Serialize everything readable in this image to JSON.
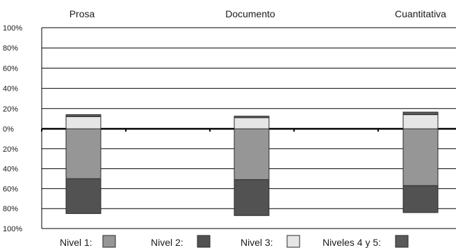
{
  "chart_data": {
    "type": "bar",
    "categories": [
      "Prosa",
      "Documento",
      "Cuantitativa"
    ],
    "y_tick_labels": [
      "100%",
      "80%",
      "60%",
      "40%",
      "20%",
      "0%",
      "20%",
      "40%",
      "60%",
      "80%",
      "100%"
    ],
    "ylim": [
      -100,
      100
    ],
    "grid": true,
    "legend_position": "bottom",
    "series": [
      {
        "name": "Nivel 1:",
        "color": "#969696",
        "values": [
          -50,
          -51,
          -57
        ],
        "direction": "below"
      },
      {
        "name": "Nivel 2:",
        "color": "#525252",
        "values": [
          -35,
          -36,
          -27
        ],
        "direction": "below"
      },
      {
        "name": "Nivel 3:",
        "color": "#e6e6e6",
        "values": [
          12,
          11,
          14
        ],
        "direction": "above"
      },
      {
        "name": "Niveles 4 y 5:",
        "color": "#5a5a5a",
        "values": [
          2,
          1.5,
          2.5
        ],
        "direction": "above"
      }
    ]
  }
}
